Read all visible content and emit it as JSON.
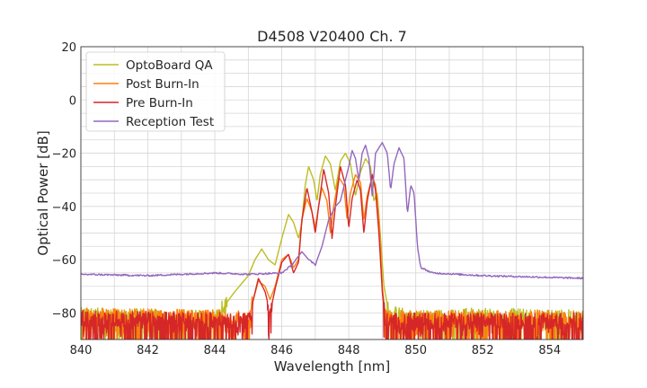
{
  "chart_data": {
    "type": "line",
    "title": "D4508 V20400 Ch. 7",
    "xlabel": "Wavelength [nm]",
    "ylabel": "Optical Power [dB]",
    "xlim": [
      840,
      855
    ],
    "ylim": [
      -90,
      20
    ],
    "xticks": [
      "840",
      "842",
      "844",
      "846",
      "848",
      "850",
      "852",
      "854"
    ],
    "yticks": [
      "20",
      "0",
      "−20",
      "−40",
      "−60",
      "−80"
    ],
    "grid": true,
    "legend_position": "top-left",
    "series": [
      {
        "name": "OptoBoard QA",
        "color": "#bcbd22",
        "points": [
          [
            840,
            -81
          ],
          [
            844,
            -82
          ],
          [
            844.6,
            -72
          ],
          [
            845.0,
            -66
          ],
          [
            845.2,
            -60
          ],
          [
            845.4,
            -56
          ],
          [
            845.6,
            -60
          ],
          [
            845.8,
            -62
          ],
          [
            846.0,
            -52
          ],
          [
            846.2,
            -43
          ],
          [
            846.35,
            -46
          ],
          [
            846.5,
            -52
          ],
          [
            846.6,
            -46
          ],
          [
            846.7,
            -32
          ],
          [
            846.8,
            -25
          ],
          [
            846.95,
            -30
          ],
          [
            847.05,
            -38
          ],
          [
            847.15,
            -28
          ],
          [
            847.3,
            -21
          ],
          [
            847.45,
            -24
          ],
          [
            847.6,
            -34
          ],
          [
            847.75,
            -23
          ],
          [
            847.9,
            -20
          ],
          [
            848.05,
            -24
          ],
          [
            848.2,
            -36
          ],
          [
            848.35,
            -27
          ],
          [
            848.5,
            -22
          ],
          [
            848.65,
            -25
          ],
          [
            848.75,
            -38
          ],
          [
            848.85,
            -35
          ],
          [
            848.95,
            -52
          ],
          [
            849.05,
            -70
          ],
          [
            849.2,
            -80
          ],
          [
            850,
            -82
          ],
          [
            852,
            -81
          ],
          [
            855,
            -82
          ]
        ]
      },
      {
        "name": "Post Burn-In",
        "color": "#ff7f0e",
        "points": [
          [
            840,
            -81
          ],
          [
            845,
            -82
          ],
          [
            845.3,
            -68
          ],
          [
            845.5,
            -70
          ],
          [
            845.65,
            -75
          ],
          [
            845.8,
            -70
          ],
          [
            846.0,
            -60
          ],
          [
            846.2,
            -58
          ],
          [
            846.35,
            -63
          ],
          [
            846.5,
            -60
          ],
          [
            846.6,
            -45
          ],
          [
            846.75,
            -37
          ],
          [
            846.9,
            -42
          ],
          [
            847.0,
            -48
          ],
          [
            847.1,
            -40
          ],
          [
            847.2,
            -33
          ],
          [
            847.35,
            -38
          ],
          [
            847.45,
            -50
          ],
          [
            847.55,
            -40
          ],
          [
            847.7,
            -29
          ],
          [
            847.85,
            -32
          ],
          [
            847.95,
            -45
          ],
          [
            848.05,
            -35
          ],
          [
            848.2,
            -28
          ],
          [
            848.35,
            -31
          ],
          [
            848.45,
            -45
          ],
          [
            848.55,
            -36
          ],
          [
            848.7,
            -29
          ],
          [
            848.8,
            -32
          ],
          [
            848.9,
            -45
          ],
          [
            849.0,
            -70
          ],
          [
            849.1,
            -82
          ],
          [
            855,
            -82
          ]
        ]
      },
      {
        "name": "Pre Burn-In",
        "color": "#d62728",
        "points": [
          [
            840,
            -82
          ],
          [
            845,
            -83
          ],
          [
            845.3,
            -67
          ],
          [
            845.5,
            -72
          ],
          [
            845.65,
            -80
          ],
          [
            845.8,
            -71
          ],
          [
            846.0,
            -61
          ],
          [
            846.2,
            -58
          ],
          [
            846.35,
            -65
          ],
          [
            846.5,
            -61
          ],
          [
            846.6,
            -45
          ],
          [
            846.75,
            -33
          ],
          [
            846.9,
            -42
          ],
          [
            847.0,
            -50
          ],
          [
            847.1,
            -40
          ],
          [
            847.25,
            -26
          ],
          [
            847.4,
            -35
          ],
          [
            847.5,
            -52
          ],
          [
            847.6,
            -40
          ],
          [
            847.75,
            -25
          ],
          [
            847.9,
            -32
          ],
          [
            848.0,
            -48
          ],
          [
            848.1,
            -37
          ],
          [
            848.25,
            -30
          ],
          [
            848.35,
            -34
          ],
          [
            848.45,
            -50
          ],
          [
            848.55,
            -38
          ],
          [
            848.7,
            -28
          ],
          [
            848.8,
            -34
          ],
          [
            848.9,
            -50
          ],
          [
            849.0,
            -72
          ],
          [
            849.1,
            -83
          ],
          [
            855,
            -83
          ]
        ]
      },
      {
        "name": "Reception Test",
        "color": "#9467bd",
        "points": [
          [
            840,
            -65.5
          ],
          [
            842,
            -66
          ],
          [
            844,
            -65
          ],
          [
            845,
            -65.5
          ],
          [
            846,
            -65
          ],
          [
            846.3,
            -62
          ],
          [
            846.6,
            -57
          ],
          [
            846.8,
            -60
          ],
          [
            847.0,
            -62
          ],
          [
            847.2,
            -55
          ],
          [
            847.4,
            -45
          ],
          [
            847.6,
            -40
          ],
          [
            847.75,
            -38
          ],
          [
            847.9,
            -30
          ],
          [
            848.0,
            -25
          ],
          [
            848.1,
            -19
          ],
          [
            848.2,
            -22
          ],
          [
            848.3,
            -30
          ],
          [
            848.4,
            -20
          ],
          [
            848.5,
            -17
          ],
          [
            848.6,
            -22
          ],
          [
            848.7,
            -36
          ],
          [
            848.8,
            -20
          ],
          [
            849.0,
            -16
          ],
          [
            849.15,
            -20
          ],
          [
            849.25,
            -34
          ],
          [
            849.35,
            -24
          ],
          [
            849.5,
            -18
          ],
          [
            849.65,
            -22
          ],
          [
            849.75,
            -43
          ],
          [
            849.85,
            -32
          ],
          [
            849.95,
            -35
          ],
          [
            850.05,
            -55
          ],
          [
            850.15,
            -63
          ],
          [
            850.5,
            -65
          ],
          [
            852,
            -66
          ],
          [
            855,
            -67
          ]
        ]
      }
    ]
  }
}
